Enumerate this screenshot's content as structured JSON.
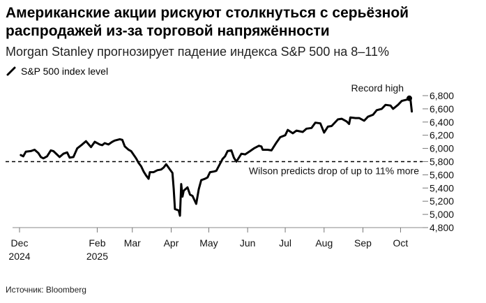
{
  "title": "Американские акции рискуют столкнуться с серьёзной распродажей из-за торговой напряжённости",
  "subtitle": "Morgan Stanley прогнозирует падение индекса S&P 500 на 8–11%",
  "source": "Источник: Bloomberg",
  "chart_data": {
    "type": "line",
    "title": "Американские акции рискуют столкнуться с серьёзной распродажей из-за торговой напряжённости",
    "subtitle": "Morgan Stanley прогнозирует падение индекса S&P 500 на 8–11%",
    "xlabel": "",
    "ylabel": "",
    "ylim": [
      4800,
      6800
    ],
    "y_ticks": [
      {
        "value": 4800,
        "label": "4,800"
      },
      {
        "value": 5000,
        "label": "5,000"
      },
      {
        "value": 5200,
        "label": "5,200"
      },
      {
        "value": 5400,
        "label": "5,400"
      },
      {
        "value": 5600,
        "label": "5,600"
      },
      {
        "value": 5800,
        "label": "5,800"
      },
      {
        "value": 6000,
        "label": "6,000"
      },
      {
        "value": 6200,
        "label": "6,200"
      },
      {
        "value": 6400,
        "label": "6,400"
      },
      {
        "value": 6600,
        "label": "6,600"
      },
      {
        "value": 6800,
        "label": "6,800"
      }
    ],
    "x_ticks": [
      {
        "date": "2024-12-01",
        "line1": "Dec",
        "line2": "2024"
      },
      {
        "date": "2025-02-01",
        "line1": "Feb",
        "line2": "2025"
      },
      {
        "date": "2025-03-01",
        "line1": "Mar",
        "line2": ""
      },
      {
        "date": "2025-04-01",
        "line1": "Apr",
        "line2": ""
      },
      {
        "date": "2025-05-01",
        "line1": "May",
        "line2": ""
      },
      {
        "date": "2025-06-01",
        "line1": "Jun",
        "line2": ""
      },
      {
        "date": "2025-07-01",
        "line1": "Jul",
        "line2": ""
      },
      {
        "date": "2025-08-01",
        "line1": "Aug",
        "line2": ""
      },
      {
        "date": "2025-09-01",
        "line1": "Sep",
        "line2": ""
      },
      {
        "date": "2025-10-01",
        "line1": "Oct",
        "line2": ""
      }
    ],
    "grid": false,
    "legend_position": "top-left",
    "reference_line": {
      "value": 5800,
      "style": "dashed",
      "label": "Wilson predicts drop of up to 11% more"
    },
    "annotation": {
      "label": "Record high",
      "date": "2025-10-08",
      "value": 6760
    },
    "series": [
      {
        "name": "S&P 500 index level",
        "color": "#000000",
        "points": [
          [
            "2024-12-02",
            5900
          ],
          [
            "2024-12-04",
            5880
          ],
          [
            "2024-12-06",
            5950
          ],
          [
            "2024-12-10",
            5960
          ],
          [
            "2024-12-13",
            5980
          ],
          [
            "2024-12-16",
            5930
          ],
          [
            "2024-12-18",
            5870
          ],
          [
            "2024-12-20",
            5850
          ],
          [
            "2024-12-23",
            5880
          ],
          [
            "2024-12-26",
            5970
          ],
          [
            "2024-12-28",
            5960
          ],
          [
            "2025-01-02",
            5870
          ],
          [
            "2025-01-05",
            5920
          ],
          [
            "2025-01-08",
            5940
          ],
          [
            "2025-01-10",
            5860
          ],
          [
            "2025-01-13",
            5870
          ],
          [
            "2025-01-16",
            6000
          ],
          [
            "2025-01-20",
            6060
          ],
          [
            "2025-01-23",
            6110
          ],
          [
            "2025-01-27",
            6020
          ],
          [
            "2025-01-30",
            6100
          ],
          [
            "2025-02-03",
            6060
          ],
          [
            "2025-02-05",
            6050
          ],
          [
            "2025-02-07",
            6080
          ],
          [
            "2025-02-10",
            6060
          ],
          [
            "2025-02-13",
            6100
          ],
          [
            "2025-02-15",
            6120
          ],
          [
            "2025-02-19",
            6140
          ],
          [
            "2025-02-21",
            6130
          ],
          [
            "2025-02-23",
            6030
          ],
          [
            "2025-02-26",
            5980
          ],
          [
            "2025-02-28",
            5960
          ],
          [
            "2025-03-04",
            5850
          ],
          [
            "2025-03-06",
            5780
          ],
          [
            "2025-03-08",
            5730
          ],
          [
            "2025-03-10",
            5650
          ],
          [
            "2025-03-12",
            5590
          ],
          [
            "2025-03-14",
            5540
          ],
          [
            "2025-03-15",
            5640
          ],
          [
            "2025-03-18",
            5640
          ],
          [
            "2025-03-21",
            5670
          ],
          [
            "2025-03-24",
            5680
          ],
          [
            "2025-03-26",
            5710
          ],
          [
            "2025-03-28",
            5760
          ],
          [
            "2025-03-31",
            5680
          ],
          [
            "2025-04-02",
            5630
          ],
          [
            "2025-04-03",
            5390
          ],
          [
            "2025-04-04",
            5080
          ],
          [
            "2025-04-07",
            5060
          ],
          [
            "2025-04-08",
            4980
          ],
          [
            "2025-04-09",
            5460
          ],
          [
            "2025-04-10",
            5270
          ],
          [
            "2025-04-11",
            5360
          ],
          [
            "2025-04-14",
            5410
          ],
          [
            "2025-04-16",
            5300
          ],
          [
            "2025-04-18",
            5280
          ],
          [
            "2025-04-21",
            5160
          ],
          [
            "2025-04-23",
            5380
          ],
          [
            "2025-04-25",
            5520
          ],
          [
            "2025-04-28",
            5540
          ],
          [
            "2025-04-30",
            5560
          ],
          [
            "2025-05-02",
            5640
          ],
          [
            "2025-05-05",
            5650
          ],
          [
            "2025-05-07",
            5660
          ],
          [
            "2025-05-12",
            5840
          ],
          [
            "2025-05-14",
            5880
          ],
          [
            "2025-05-16",
            5960
          ],
          [
            "2025-05-19",
            5970
          ],
          [
            "2025-05-21",
            5860
          ],
          [
            "2025-05-23",
            5800
          ],
          [
            "2025-05-27",
            5920
          ],
          [
            "2025-05-30",
            5910
          ],
          [
            "2025-06-03",
            5960
          ],
          [
            "2025-06-06",
            6000
          ],
          [
            "2025-06-10",
            6040
          ],
          [
            "2025-06-12",
            6030
          ],
          [
            "2025-06-13",
            5980
          ],
          [
            "2025-06-17",
            5980
          ],
          [
            "2025-06-20",
            5970
          ],
          [
            "2025-06-24",
            6090
          ],
          [
            "2025-06-27",
            6170
          ],
          [
            "2025-07-01",
            6200
          ],
          [
            "2025-07-03",
            6280
          ],
          [
            "2025-07-07",
            6230
          ],
          [
            "2025-07-10",
            6270
          ],
          [
            "2025-07-15",
            6250
          ],
          [
            "2025-07-18",
            6300
          ],
          [
            "2025-07-22",
            6310
          ],
          [
            "2025-07-25",
            6390
          ],
          [
            "2025-07-29",
            6380
          ],
          [
            "2025-08-01",
            6240
          ],
          [
            "2025-08-04",
            6330
          ],
          [
            "2025-08-07",
            6340
          ],
          [
            "2025-08-12",
            6440
          ],
          [
            "2025-08-15",
            6450
          ],
          [
            "2025-08-19",
            6410
          ],
          [
            "2025-08-21",
            6370
          ],
          [
            "2025-08-22",
            6470
          ],
          [
            "2025-08-26",
            6460
          ],
          [
            "2025-08-29",
            6460
          ],
          [
            "2025-09-02",
            6420
          ],
          [
            "2025-09-05",
            6480
          ],
          [
            "2025-09-09",
            6510
          ],
          [
            "2025-09-12",
            6580
          ],
          [
            "2025-09-16",
            6600
          ],
          [
            "2025-09-19",
            6660
          ],
          [
            "2025-09-23",
            6650
          ],
          [
            "2025-09-25",
            6600
          ],
          [
            "2025-09-29",
            6660
          ],
          [
            "2025-10-02",
            6720
          ],
          [
            "2025-10-06",
            6740
          ],
          [
            "2025-10-08",
            6760
          ],
          [
            "2025-10-09",
            6730
          ],
          [
            "2025-10-10",
            6560
          ]
        ]
      }
    ]
  }
}
